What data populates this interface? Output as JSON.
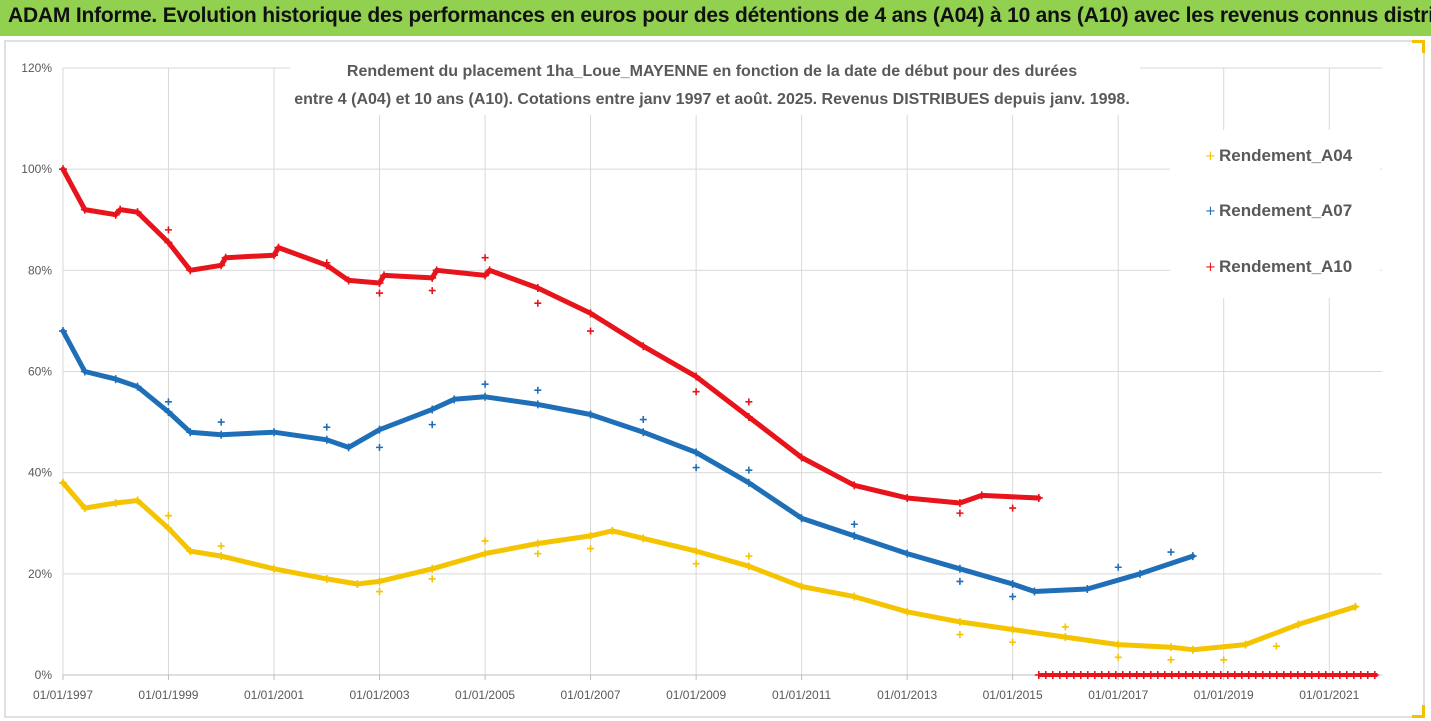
{
  "banner": {
    "title": "ADAM Informe. Evolution historique des performances en euros pour des détentions de 4 ans (A04) à 10 ans (A10) avec les revenus connus distribués",
    "background": "#92d050"
  },
  "chart_data": {
    "type": "scatter",
    "title_line1": "Rendement du placement 1ha_Loue_MAYENNE  en fonction de la date de début pour des durées",
    "title_line2": "entre 4 (A04) et 10 ans (A10). Cotations entre janv 1997 et août. 2025. Revenus DISTRIBUES depuis janv. 1998.",
    "xlabel": "",
    "ylabel": "",
    "x_ticks": [
      "01/01/1997",
      "01/01/1999",
      "01/01/2001",
      "01/01/2003",
      "01/01/2005",
      "01/01/2007",
      "01/01/2009",
      "01/01/2011",
      "01/01/2013",
      "01/01/2015",
      "01/01/2017",
      "01/01/2019",
      "01/01/2021"
    ],
    "y_ticks": [
      "0%",
      "20%",
      "40%",
      "60%",
      "80%",
      "100%",
      "120%"
    ],
    "xlim": [
      "1997-01-01",
      "2022-01-01"
    ],
    "ylim": [
      0,
      1.2
    ],
    "grid": true,
    "legend_position": "right",
    "marker": "plus",
    "series": [
      {
        "name": "Rendement_A04",
        "color": "#f5c400",
        "values": [
          [
            "1997-01-01",
            0.38
          ],
          [
            "1997-06-01",
            0.33
          ],
          [
            "1998-01-01",
            0.34
          ],
          [
            "1998-06-01",
            0.345
          ],
          [
            "1999-01-01",
            0.29
          ],
          [
            "1999-06-01",
            0.245
          ],
          [
            "2000-01-01",
            0.235
          ],
          [
            "2001-01-01",
            0.21
          ],
          [
            "2002-01-01",
            0.19
          ],
          [
            "2002-08-01",
            0.18
          ],
          [
            "2003-01-01",
            0.185
          ],
          [
            "2004-01-01",
            0.21
          ],
          [
            "2005-01-01",
            0.24
          ],
          [
            "2006-01-01",
            0.26
          ],
          [
            "2007-01-01",
            0.275
          ],
          [
            "2007-06-01",
            0.285
          ],
          [
            "2008-01-01",
            0.27
          ],
          [
            "2009-01-01",
            0.245
          ],
          [
            "2010-01-01",
            0.215
          ],
          [
            "2011-01-01",
            0.175
          ],
          [
            "2012-01-01",
            0.155
          ],
          [
            "2013-01-01",
            0.125
          ],
          [
            "2014-01-01",
            0.105
          ],
          [
            "2015-01-01",
            0.09
          ],
          [
            "2016-01-01",
            0.075
          ],
          [
            "2017-01-01",
            0.06
          ],
          [
            "2018-01-01",
            0.055
          ],
          [
            "2018-06-01",
            0.05
          ],
          [
            "2019-06-01",
            0.06
          ],
          [
            "2020-06-01",
            0.1
          ],
          [
            "2021-07-01",
            0.135
          ]
        ],
        "outliers": [
          [
            "1999-01-01",
            0.315
          ],
          [
            "2000-01-01",
            0.255
          ],
          [
            "2003-01-01",
            0.165
          ],
          [
            "2004-01-01",
            0.19
          ],
          [
            "2005-01-01",
            0.265
          ],
          [
            "2006-01-01",
            0.24
          ],
          [
            "2007-01-01",
            0.25
          ],
          [
            "2009-01-01",
            0.22
          ],
          [
            "2010-01-01",
            0.235
          ],
          [
            "2014-01-01",
            0.08
          ],
          [
            "2015-01-01",
            0.065
          ],
          [
            "2016-01-01",
            0.095
          ],
          [
            "2017-01-01",
            0.035
          ],
          [
            "2018-01-01",
            0.03
          ],
          [
            "2019-01-01",
            0.03
          ],
          [
            "2020-01-01",
            0.057
          ]
        ]
      },
      {
        "name": "Rendement_A07",
        "color": "#1f6fb8",
        "values": [
          [
            "1997-01-01",
            0.68
          ],
          [
            "1997-06-01",
            0.6
          ],
          [
            "1998-01-01",
            0.585
          ],
          [
            "1998-06-01",
            0.57
          ],
          [
            "1999-01-01",
            0.52
          ],
          [
            "1999-06-01",
            0.48
          ],
          [
            "2000-01-01",
            0.475
          ],
          [
            "2001-01-01",
            0.48
          ],
          [
            "2002-01-01",
            0.465
          ],
          [
            "2002-06-01",
            0.45
          ],
          [
            "2003-01-01",
            0.485
          ],
          [
            "2004-01-01",
            0.525
          ],
          [
            "2004-06-01",
            0.545
          ],
          [
            "2005-01-01",
            0.55
          ],
          [
            "2006-01-01",
            0.535
          ],
          [
            "2007-01-01",
            0.515
          ],
          [
            "2008-01-01",
            0.48
          ],
          [
            "2009-01-01",
            0.44
          ],
          [
            "2010-01-01",
            0.38
          ],
          [
            "2011-01-01",
            0.31
          ],
          [
            "2012-01-01",
            0.275
          ],
          [
            "2013-01-01",
            0.24
          ],
          [
            "2014-01-01",
            0.21
          ],
          [
            "2015-01-01",
            0.18
          ],
          [
            "2015-06-01",
            0.165
          ],
          [
            "2016-06-01",
            0.17
          ],
          [
            "2017-06-01",
            0.2
          ],
          [
            "2018-06-01",
            0.235
          ]
        ],
        "outliers": [
          [
            "1999-01-01",
            0.54
          ],
          [
            "2000-01-01",
            0.5
          ],
          [
            "2002-01-01",
            0.49
          ],
          [
            "2003-01-01",
            0.45
          ],
          [
            "2004-01-01",
            0.495
          ],
          [
            "2005-01-01",
            0.575
          ],
          [
            "2006-01-01",
            0.563
          ],
          [
            "2008-01-01",
            0.505
          ],
          [
            "2009-01-01",
            0.41
          ],
          [
            "2010-01-01",
            0.405
          ],
          [
            "2012-01-01",
            0.298
          ],
          [
            "2014-01-01",
            0.185
          ],
          [
            "2015-01-01",
            0.155
          ],
          [
            "2017-01-01",
            0.213
          ],
          [
            "2018-01-01",
            0.243
          ]
        ]
      },
      {
        "name": "Rendement_A10",
        "color": "#e8141c",
        "values": [
          [
            "1997-01-01",
            1.0
          ],
          [
            "1997-06-01",
            0.92
          ],
          [
            "1998-01-01",
            0.91
          ],
          [
            "1998-02-01",
            0.92
          ],
          [
            "1998-06-01",
            0.915
          ],
          [
            "1999-01-01",
            0.855
          ],
          [
            "1999-06-01",
            0.8
          ],
          [
            "2000-01-01",
            0.81
          ],
          [
            "2000-02-01",
            0.825
          ],
          [
            "2001-01-01",
            0.83
          ],
          [
            "2001-02-01",
            0.845
          ],
          [
            "2002-01-01",
            0.81
          ],
          [
            "2002-06-01",
            0.78
          ],
          [
            "2003-01-01",
            0.775
          ],
          [
            "2003-02-01",
            0.79
          ],
          [
            "2004-01-01",
            0.785
          ],
          [
            "2004-02-01",
            0.8
          ],
          [
            "2005-01-01",
            0.79
          ],
          [
            "2005-02-01",
            0.8
          ],
          [
            "2006-01-01",
            0.765
          ],
          [
            "2007-01-01",
            0.715
          ],
          [
            "2008-01-01",
            0.65
          ],
          [
            "2009-01-01",
            0.59
          ],
          [
            "2010-01-01",
            0.51
          ],
          [
            "2011-01-01",
            0.43
          ],
          [
            "2012-01-01",
            0.375
          ],
          [
            "2013-01-01",
            0.35
          ],
          [
            "2014-01-01",
            0.34
          ],
          [
            "2014-06-01",
            0.355
          ],
          [
            "2015-07-01",
            0.35
          ]
        ],
        "outliers": [
          [
            "1999-01-01",
            0.88
          ],
          [
            "2002-01-01",
            0.815
          ],
          [
            "2003-01-01",
            0.755
          ],
          [
            "2004-01-01",
            0.76
          ],
          [
            "2005-01-01",
            0.825
          ],
          [
            "2006-01-01",
            0.735
          ],
          [
            "2007-01-01",
            0.68
          ],
          [
            "2009-01-01",
            0.56
          ],
          [
            "2010-01-01",
            0.54
          ],
          [
            "2014-01-01",
            0.32
          ],
          [
            "2015-01-01",
            0.33
          ]
        ],
        "zero_segment": [
          "2015-07-01",
          "2021-12-01"
        ]
      }
    ]
  }
}
